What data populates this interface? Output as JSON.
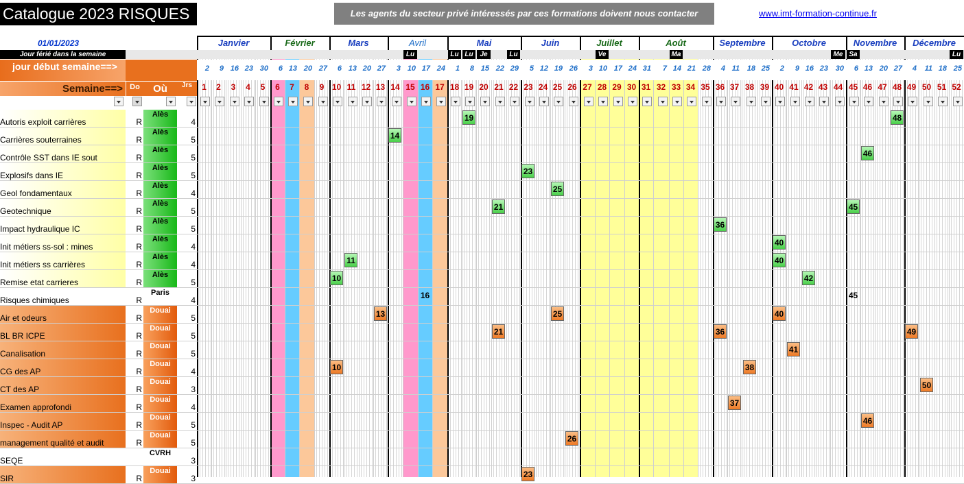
{
  "header": {
    "title": "Catalogue 2023 RISQUES",
    "notice": "Les agents du secteur privé intéressés par ces formations doivent nous contacter",
    "url": "www.imt-formation-continue.fr",
    "date": "01/01/2023",
    "ferie_label": "Jour férié dans la semaine",
    "jour_debut_label": "jour début semaine==>",
    "semaine_label": "Semaine==>",
    "col_do": "Do",
    "col_ou": "Où",
    "col_jrs": "Jrs"
  },
  "months": [
    {
      "label": "Janvier",
      "color": "#1a3fbf"
    },
    {
      "label": "Février",
      "color": "#1a6a1a"
    },
    {
      "label": "Mars",
      "color": "#1a3fbf"
    },
    {
      "label": "Avril",
      "color": "#1f6fc8"
    },
    {
      "label": "Mai",
      "color": "#1a3fbf"
    },
    {
      "label": "Juin",
      "color": "#1a3fbf"
    },
    {
      "label": "Juillet",
      "color": "#1a6a1a"
    },
    {
      "label": "Août",
      "color": "#1a6a1a"
    },
    {
      "label": "Septembre",
      "color": "#1a3fbf"
    },
    {
      "label": "Octobre",
      "color": "#1a3fbf"
    },
    {
      "label": "Novembre",
      "color": "#1a3fbf"
    },
    {
      "label": "Décembre",
      "color": "#1a3fbf"
    }
  ],
  "ferie_days": [
    {
      "week": 15,
      "label": "Lu"
    },
    {
      "week": 18,
      "label": "Lu"
    },
    {
      "week": 19,
      "label": "Lu"
    },
    {
      "week": 20,
      "label": "Je"
    },
    {
      "week": 22,
      "label": "Lu"
    },
    {
      "week": 28,
      "label": "Ve"
    },
    {
      "week": 33,
      "label": "Ma"
    },
    {
      "week": 44,
      "label": "Me"
    },
    {
      "week": 45,
      "label": "Sa"
    },
    {
      "week": 52,
      "label": "Lu"
    }
  ],
  "start_days": [
    "2",
    "9",
    "16",
    "23",
    "30",
    "6",
    "13",
    "20",
    "27",
    "6",
    "13",
    "20",
    "27",
    "3",
    "10",
    "17",
    "24",
    "1",
    "8",
    "15",
    "22",
    "29",
    "5",
    "12",
    "19",
    "26",
    "3",
    "10",
    "17",
    "24",
    "31",
    "7",
    "14",
    "21",
    "28",
    "4",
    "11",
    "18",
    "25",
    "2",
    "9",
    "16",
    "23",
    "30",
    "6",
    "13",
    "20",
    "27",
    "4",
    "11",
    "18",
    "25"
  ],
  "weeks": [
    "1",
    "2",
    "3",
    "4",
    "5",
    "6",
    "7",
    "8",
    "9",
    "10",
    "11",
    "12",
    "13",
    "14",
    "15",
    "16",
    "17",
    "18",
    "19",
    "20",
    "21",
    "22",
    "23",
    "24",
    "25",
    "26",
    "27",
    "28",
    "29",
    "30",
    "31",
    "32",
    "33",
    "34",
    "35",
    "36",
    "37",
    "38",
    "39",
    "40",
    "41",
    "42",
    "43",
    "44",
    "45",
    "46",
    "47",
    "48",
    "49",
    "50",
    "51",
    "52"
  ],
  "rows": [
    {
      "label": "Autoris exploit carrières",
      "do": "R",
      "ou": "Alès",
      "jrs": "4",
      "style": "y",
      "marks": [
        {
          "week": 19,
          "text": "19",
          "type": "g"
        },
        {
          "week": 48,
          "text": "48",
          "type": "g"
        }
      ]
    },
    {
      "label": "Carrières souterraines",
      "do": "R",
      "ou": "Alès",
      "jrs": "5",
      "style": "y",
      "marks": [
        {
          "week": 14,
          "text": "14",
          "type": "g"
        }
      ]
    },
    {
      "label": "Contrôle SST dans IE sout",
      "do": "R",
      "ou": "Alès",
      "jrs": "5",
      "style": "y",
      "marks": [
        {
          "week": 46,
          "text": "46",
          "type": "g"
        }
      ]
    },
    {
      "label": "Explosifs dans IE",
      "do": "R",
      "ou": "Alès",
      "jrs": "5",
      "style": "y",
      "marks": [
        {
          "week": 23,
          "text": "23",
          "type": "g"
        }
      ]
    },
    {
      "label": "Geol fondamentaux",
      "do": "R",
      "ou": "Alès",
      "jrs": "4",
      "style": "y",
      "marks": [
        {
          "week": 25,
          "text": "25",
          "type": "g"
        }
      ]
    },
    {
      "label": "Geotechnique",
      "do": "R",
      "ou": "Alès",
      "jrs": "5",
      "style": "y",
      "marks": [
        {
          "week": 21,
          "text": "21",
          "type": "g"
        },
        {
          "week": 45,
          "text": "45",
          "type": "g"
        }
      ]
    },
    {
      "label": "Impact hydraulique IC",
      "do": "R",
      "ou": "Alès",
      "jrs": "5",
      "style": "y",
      "marks": [
        {
          "week": 36,
          "text": "36",
          "type": "g"
        }
      ]
    },
    {
      "label": "Init  métiers ss-sol : mines",
      "do": "R",
      "ou": "Alès",
      "jrs": "4",
      "style": "y",
      "marks": [
        {
          "week": 40,
          "text": "40",
          "type": "g"
        }
      ]
    },
    {
      "label": "Init métiers ss carrières",
      "do": "R",
      "ou": "Alès",
      "jrs": "4",
      "style": "y",
      "marks": [
        {
          "week": 11,
          "text": "11",
          "type": "g"
        },
        {
          "week": 40,
          "text": "40",
          "type": "g"
        }
      ]
    },
    {
      "label": "Remise etat carrieres",
      "do": "R",
      "ou": "Alès",
      "jrs": "5",
      "style": "y",
      "marks": [
        {
          "week": 10,
          "text": "10",
          "type": "g"
        },
        {
          "week": 42,
          "text": "42",
          "type": "g"
        }
      ]
    },
    {
      "label": "Risques chimiques",
      "do": "R",
      "ou": "Paris",
      "jrs": "4",
      "style": "w",
      "marks": [
        {
          "week": 16,
          "text": "16",
          "type": "p"
        },
        {
          "week": 45,
          "text": "45",
          "type": "p"
        }
      ]
    },
    {
      "label": "Air et odeurs",
      "do": "R",
      "ou": "Douai",
      "jrs": "5",
      "style": "o",
      "marks": [
        {
          "week": 13,
          "text": "13",
          "type": "o"
        },
        {
          "week": 25,
          "text": "25",
          "type": "o"
        },
        {
          "week": 40,
          "text": "40",
          "type": "o"
        }
      ]
    },
    {
      "label": "BL BR ICPE",
      "do": "R",
      "ou": "Douai",
      "jrs": "5",
      "style": "o",
      "marks": [
        {
          "week": 21,
          "text": "21",
          "type": "o"
        },
        {
          "week": 36,
          "text": "36",
          "type": "o"
        },
        {
          "week": 49,
          "text": "49",
          "type": "o"
        }
      ]
    },
    {
      "label": "Canalisation",
      "do": "R",
      "ou": "Douai",
      "jrs": "5",
      "style": "o",
      "marks": [
        {
          "week": 41,
          "text": "41",
          "type": "o"
        }
      ]
    },
    {
      "label": "CG des AP",
      "do": "R",
      "ou": "Douai",
      "jrs": "4",
      "style": "o",
      "marks": [
        {
          "week": 10,
          "text": "10",
          "type": "o"
        },
        {
          "week": 38,
          "text": "38",
          "type": "o"
        }
      ]
    },
    {
      "label": "CT des AP",
      "do": "R",
      "ou": "Douai",
      "jrs": "3",
      "style": "o",
      "marks": [
        {
          "week": 50,
          "text": "50",
          "type": "o"
        }
      ]
    },
    {
      "label": "Examen approfondi",
      "do": "R",
      "ou": "Douai",
      "jrs": "4",
      "style": "o",
      "marks": [
        {
          "week": 37,
          "text": "37",
          "type": "o"
        }
      ]
    },
    {
      "label": "Inspec - Audit AP",
      "do": "R",
      "ou": "Douai",
      "jrs": "5",
      "style": "o",
      "marks": [
        {
          "week": 46,
          "text": "46",
          "type": "o"
        }
      ]
    },
    {
      "label": "management qualité et audit",
      "do": "R",
      "ou": "Douai",
      "jrs": "5",
      "style": "o",
      "marks": [
        {
          "week": 26,
          "text": "26",
          "type": "o"
        }
      ]
    },
    {
      "label": "SEQE",
      "do": "",
      "ou": "CVRH",
      "jrs": "3",
      "style": "w",
      "marks": []
    },
    {
      "label": "SIR",
      "do": "R",
      "ou": "Douai",
      "jrs": "3",
      "style": "o",
      "marks": [
        {
          "week": 23,
          "text": "23",
          "type": "o"
        }
      ]
    }
  ]
}
